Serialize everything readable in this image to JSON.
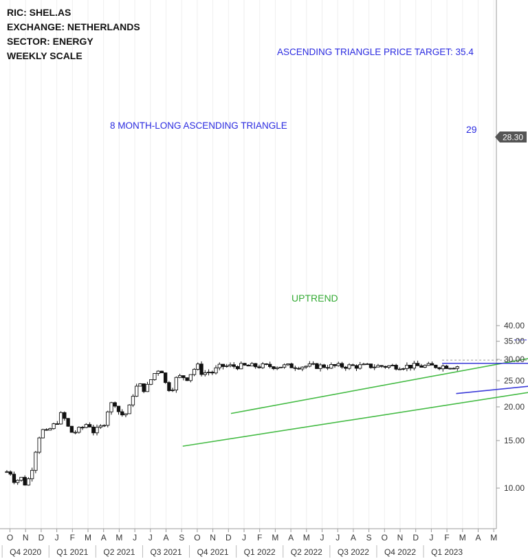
{
  "info": {
    "ric": "RIC:  SHEL.AS",
    "exchange": "EXCHANGE:  NETHERLANDS",
    "sector": "SECTOR:  ENERGY",
    "scale": "WEEKLY SCALE"
  },
  "annotations": {
    "price_target": "ASCENDING TRIANGLE PRICE TARGET: 35.4",
    "triangle": "8 MONTH-LONG ASCENDING TRIANGLE",
    "resistance_level": "29",
    "uptrend": "UPTREND"
  },
  "colors": {
    "candle": "#111111",
    "channel": "#44bb44",
    "triangle": "#3a3ad8",
    "target_text": "#2a2ae0",
    "uptrend_text": "#33aa33",
    "price_tag": "#555555",
    "axis_text": "#333333"
  },
  "chart_data": {
    "type": "candlestick",
    "scale": "log",
    "ylim": [
      8.5,
      42
    ],
    "y_ticks": [
      "10.00",
      "15.00",
      "20.00",
      "25.00",
      "30.00",
      "35.00",
      "40.00"
    ],
    "last_price": "28.30",
    "month_labels": [
      "O",
      "N",
      "D",
      "J",
      "F",
      "M",
      "A",
      "M",
      "J",
      "J",
      "A",
      "S",
      "O",
      "N",
      "D",
      "J",
      "F",
      "M",
      "A",
      "M",
      "J",
      "J",
      "A",
      "S",
      "O",
      "N",
      "D",
      "J",
      "F",
      "M",
      "A",
      "M"
    ],
    "quarter_labels": [
      "Q4 2020",
      "Q1 2021",
      "Q2 2021",
      "Q3 2021",
      "Q4 2021",
      "Q1 2022",
      "Q2 2022",
      "Q3 2022",
      "Q4 2022",
      "Q1 2023"
    ],
    "close_path": [
      [
        0,
        11.5
      ],
      [
        1,
        10.5
      ],
      [
        2,
        11.0
      ],
      [
        3,
        10.3
      ],
      [
        4,
        11.2
      ],
      [
        5,
        14.0
      ],
      [
        6,
        16.5
      ],
      [
        7,
        16.0
      ],
      [
        8,
        16.8
      ],
      [
        9,
        17.5
      ],
      [
        10,
        19.0
      ],
      [
        11,
        17.0
      ],
      [
        12,
        16.0
      ],
      [
        13,
        16.3
      ],
      [
        14,
        16.8
      ],
      [
        15,
        17.5
      ],
      [
        16,
        16.2
      ],
      [
        17,
        16.5
      ],
      [
        18,
        17.2
      ],
      [
        19,
        20.0
      ],
      [
        20,
        21.0
      ],
      [
        21,
        19.0
      ],
      [
        22,
        18.5
      ],
      [
        23,
        20.0
      ],
      [
        24,
        23.5
      ],
      [
        25,
        24.0
      ],
      [
        26,
        23.0
      ],
      [
        27,
        25.0
      ],
      [
        28,
        27.0
      ],
      [
        29,
        28.0
      ],
      [
        30,
        24.0
      ],
      [
        31,
        23.0
      ],
      [
        32,
        25.5
      ],
      [
        33,
        26.0
      ],
      [
        34,
        25.5
      ],
      [
        35,
        27.0
      ],
      [
        36,
        28.5
      ],
      [
        37,
        26.5
      ],
      [
        38,
        27.0
      ],
      [
        39,
        26.8
      ],
      [
        40,
        28.0
      ],
      [
        41,
        28.3
      ]
    ],
    "trendlines": {
      "channel_upper": [
        [
          4.72,
          18.9
        ],
        [
          13.22,
          35.4
        ]
      ],
      "channel_lower": [
        [
          3.69,
          14.3
        ],
        [
          13.81,
          26.8
        ]
      ],
      "resistance_29": [
        [
          9.23,
          29.0
        ],
        [
          13.15,
          29.0
        ]
      ],
      "triangle_support": [
        [
          9.53,
          22.4
        ],
        [
          13.81,
          26.6
        ]
      ],
      "target_line_35_4": [
        [
          10.77,
          35.4
        ],
        [
          13.7,
          35.4
        ]
      ],
      "dashed_level": [
        [
          9.23,
          29.8
        ],
        [
          13.64,
          29.8
        ]
      ]
    }
  }
}
